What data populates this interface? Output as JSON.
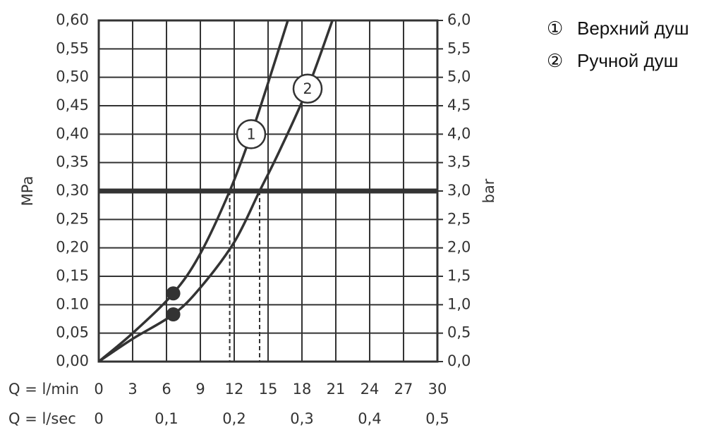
{
  "chart_data": {
    "type": "line",
    "y_label": "MPa",
    "y2_label": "bar",
    "x_label": "Q = l/min",
    "x2_label": "Q = l/sec",
    "xlim": [
      0,
      30
    ],
    "xticks": [
      0,
      3,
      6,
      9,
      12,
      15,
      18,
      21,
      24,
      27,
      30
    ],
    "x2lim": [
      0,
      0.5
    ],
    "x2ticks": [
      0,
      {
        "value": 0.1,
        "label": "0,1"
      },
      {
        "value": 0.2,
        "label": "0,2"
      },
      {
        "value": 0.3,
        "label": "0,3"
      },
      {
        "value": 0.4,
        "label": "0,4"
      },
      {
        "value": 0.5,
        "label": "0,5"
      }
    ],
    "ylim": [
      0,
      0.6
    ],
    "yticks": [
      {
        "value": 0,
        "label": "0,00"
      },
      {
        "value": 0.05,
        "label": "0,05"
      },
      {
        "value": 0.1,
        "label": "0.10"
      },
      {
        "value": 0.15,
        "label": "0,15"
      },
      {
        "value": 0.2,
        "label": "0,20"
      },
      {
        "value": 0.25,
        "label": "0,25"
      },
      {
        "value": 0.3,
        "label": "0,30"
      },
      {
        "value": 0.35,
        "label": "0,35"
      },
      {
        "value": 0.4,
        "label": "0,40"
      },
      {
        "value": 0.45,
        "label": "0,45"
      },
      {
        "value": 0.5,
        "label": "0,50"
      },
      {
        "value": 0.55,
        "label": "0,55"
      },
      {
        "value": 0.6,
        "label": "0,60"
      }
    ],
    "y2lim": [
      0,
      6
    ],
    "y2ticks": [
      {
        "value": 0,
        "label": "0,0"
      },
      {
        "value": 0.5,
        "label": "0,5"
      },
      {
        "value": 1,
        "label": "1,0"
      },
      {
        "value": 1.5,
        "label": "1,5"
      },
      {
        "value": 2,
        "label": "2,0"
      },
      {
        "value": 2.5,
        "label": "2,5"
      },
      {
        "value": 3,
        "label": "3,0"
      },
      {
        "value": 3.5,
        "label": "3,5"
      },
      {
        "value": 4,
        "label": "4,0"
      },
      {
        "value": 4.5,
        "label": "4,5"
      },
      {
        "value": 5,
        "label": "5,0"
      },
      {
        "value": 5.5,
        "label": "5,5"
      },
      {
        "value": 6,
        "label": "6,0"
      }
    ],
    "grid": true,
    "hline": 0.3,
    "drop_lines": [
      11.6,
      14.25
    ],
    "color": "#333333",
    "series": [
      {
        "name": "Верхний душ",
        "legend_symbol": "①",
        "label": "1",
        "color": "#333333",
        "x": [
          0,
          3,
          6.6,
          9,
          11.6,
          13.5,
          15,
          16.75
        ],
        "values": [
          0,
          0.05,
          0.12,
          0.19,
          0.3,
          0.4,
          0.49,
          0.6
        ],
        "marker": {
          "x": 6.6,
          "y": 0.12
        }
      },
      {
        "name": "Ручной душ",
        "legend_symbol": "②",
        "label": "2",
        "color": "#333333",
        "x": [
          0,
          3,
          6.6,
          9,
          12,
          14.25,
          16,
          18.5,
          20.7
        ],
        "values": [
          0,
          0.04,
          0.083,
          0.13,
          0.21,
          0.3,
          0.37,
          0.48,
          0.6
        ],
        "marker": {
          "x": 6.6,
          "y": 0.083
        }
      }
    ]
  }
}
